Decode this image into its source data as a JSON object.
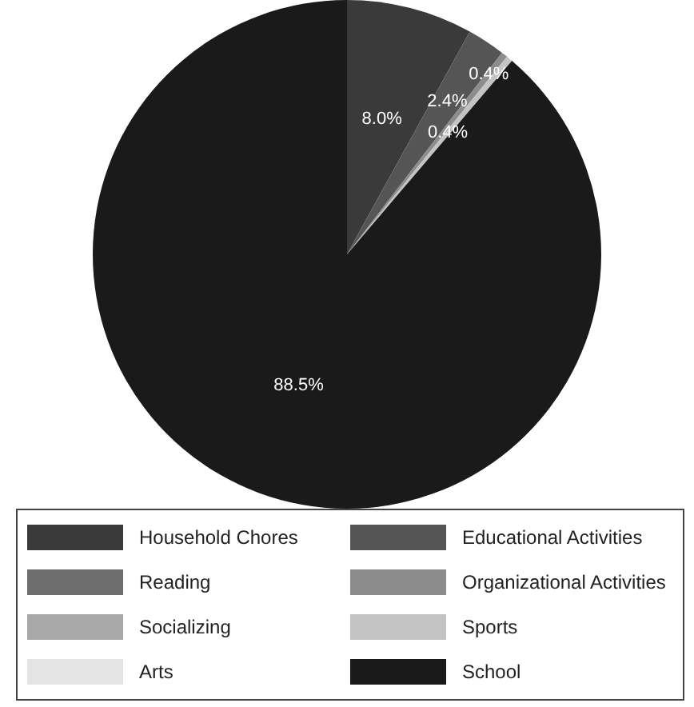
{
  "chart_data": {
    "type": "pie",
    "categories": [
      "Household Chores",
      "Educational Activities",
      "Reading",
      "Organizational Activities",
      "Socializing",
      "Sports",
      "Arts",
      "School"
    ],
    "values": [
      8.0,
      2.4,
      0,
      0.4,
      0,
      0.4,
      0,
      88.5
    ],
    "colors": [
      "#3a3a3a",
      "#555555",
      "#6e6e6e",
      "#8c8c8c",
      "#a8a8a8",
      "#c4c4c4",
      "#e4e4e4",
      "#1a1a1a"
    ],
    "value_labels": [
      "8.0%",
      "2.4%",
      null,
      "0.4%",
      null,
      "0.4%",
      null,
      "88.5%"
    ],
    "legend": "bottom"
  }
}
